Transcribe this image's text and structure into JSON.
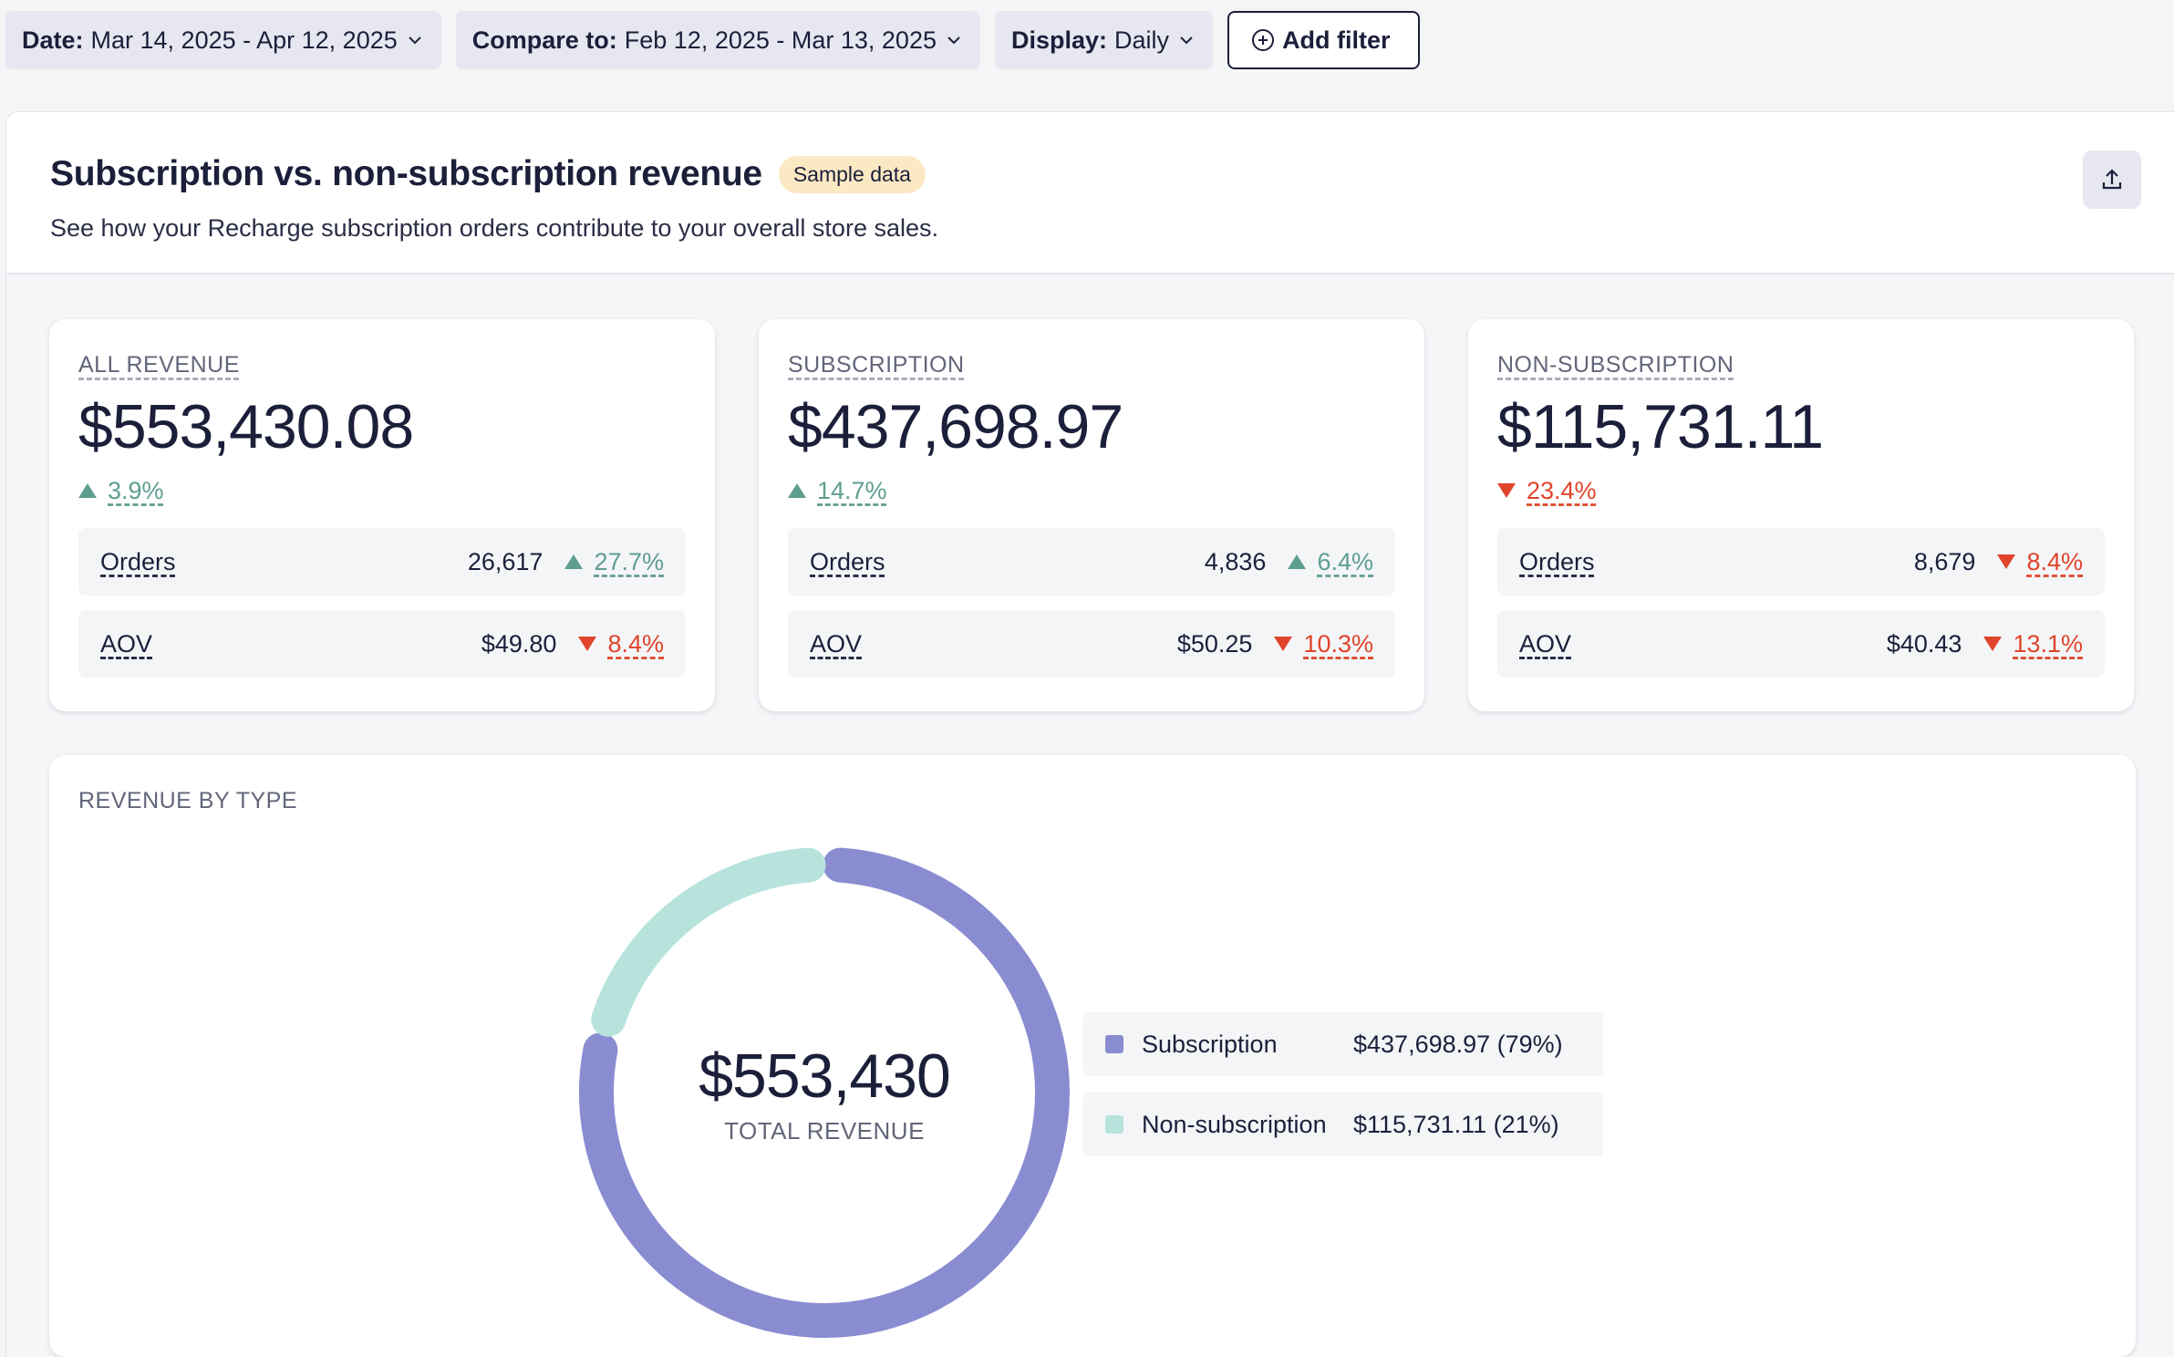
{
  "filters": {
    "date": {
      "label": "Date:",
      "value": "Mar 14, 2025 - Apr 12, 2025"
    },
    "compare": {
      "label": "Compare to:",
      "value": "Feb 12, 2025 - Mar 13, 2025"
    },
    "display": {
      "label": "Display:",
      "value": "Daily"
    },
    "add_filter": "Add filter"
  },
  "header": {
    "title": "Subscription vs. non-subscription revenue",
    "badge": "Sample data",
    "subtitle": "See how your Recharge subscription orders contribute to your overall store sales."
  },
  "cards": [
    {
      "label": "ALL REVENUE",
      "value": "$553,430.08",
      "change": "3.9%",
      "direction": "up",
      "orders": {
        "label": "Orders",
        "value": "26,617",
        "change": "27.7%",
        "direction": "up"
      },
      "aov": {
        "label": "AOV",
        "value": "$49.80",
        "change": "8.4%",
        "direction": "down"
      }
    },
    {
      "label": "SUBSCRIPTION",
      "value": "$437,698.97",
      "change": "14.7%",
      "direction": "up",
      "orders": {
        "label": "Orders",
        "value": "4,836",
        "change": "6.4%",
        "direction": "up"
      },
      "aov": {
        "label": "AOV",
        "value": "$50.25",
        "change": "10.3%",
        "direction": "down"
      }
    },
    {
      "label": "NON-SUBSCRIPTION",
      "value": "$115,731.11",
      "change": "23.4%",
      "direction": "down",
      "orders": {
        "label": "Orders",
        "value": "8,679",
        "change": "8.4%",
        "direction": "down"
      },
      "aov": {
        "label": "AOV",
        "value": "$40.43",
        "change": "13.1%",
        "direction": "down"
      }
    }
  ],
  "revenue_by_type": {
    "label": "REVENUE BY TYPE",
    "total": "$553,430",
    "total_label": "TOTAL REVENUE",
    "legend": [
      {
        "name": "Subscription",
        "amount": "$437,698.97 (79%)"
      },
      {
        "name": "Non-subscription",
        "amount": "$115,731.11 (21%)"
      }
    ]
  },
  "colors": {
    "subscription": "#8a8cd1",
    "non_subscription": "#b8e3dd",
    "positive": "#5e9e90",
    "negative": "#e0442a"
  },
  "chart_data": {
    "type": "pie",
    "categories": [
      "Subscription",
      "Non-subscription"
    ],
    "values": [
      437698.97,
      115731.11
    ],
    "title": "REVENUE BY TYPE"
  }
}
